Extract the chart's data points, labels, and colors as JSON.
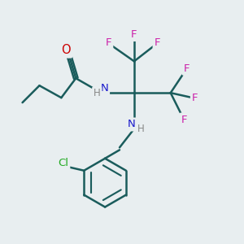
{
  "bg_color": "#e8eef0",
  "bond_color": "#1a5c5c",
  "N_color": "#1a1acc",
  "O_color": "#cc0000",
  "F_color": "#cc22aa",
  "Cl_color": "#22aa22",
  "H_color": "#888888",
  "line_width": 1.8,
  "font_size": 9.5,
  "figsize": [
    3.0,
    3.0
  ],
  "dpi": 100,
  "xlim": [
    0,
    10
  ],
  "ylim": [
    0,
    10
  ]
}
